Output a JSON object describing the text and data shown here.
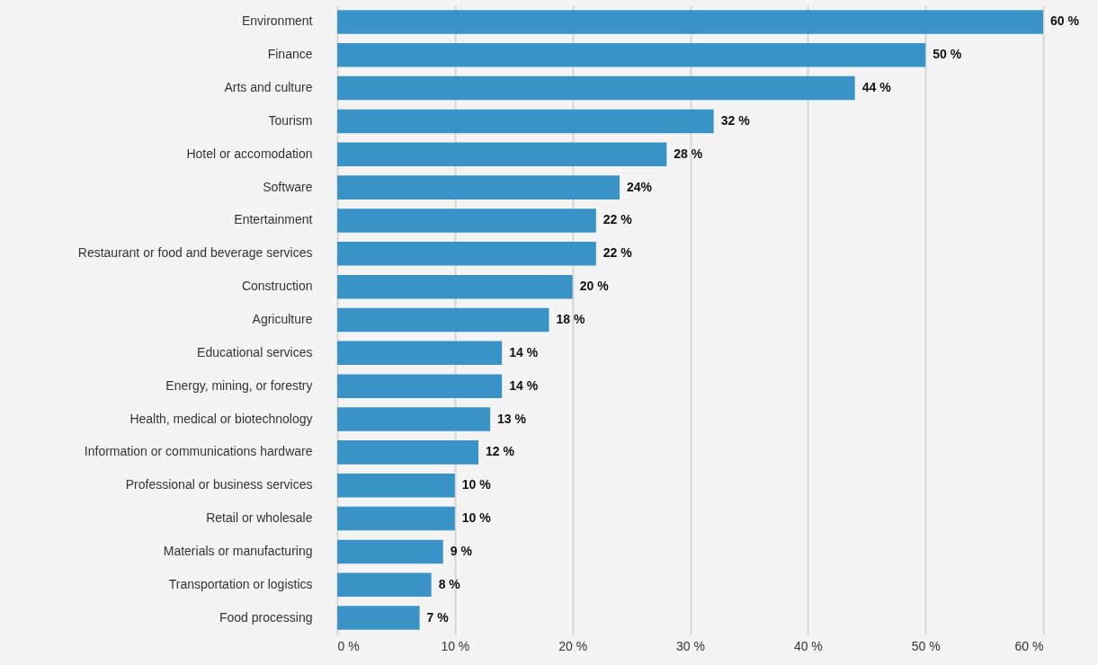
{
  "chart_data": {
    "type": "bar",
    "orientation": "horizontal",
    "categories": [
      "Environment",
      "Finance",
      "Arts and culture",
      "Tourism",
      "Hotel or accomodation",
      "Software",
      "Entertainment",
      "Restaurant or food and beverage services",
      "Construction",
      "Agriculture",
      "Educational services",
      "Energy, mining, or forestry",
      "Health, medical or biotechnology",
      "Information or communications hardware",
      "Professional or business services",
      "Retail or wholesale",
      "Materials or manufacturing",
      "Transportation or logistics",
      "Food processing"
    ],
    "values": [
      60,
      50,
      44,
      32,
      28,
      24,
      22,
      22,
      20,
      18,
      14,
      14,
      13,
      12,
      10,
      10,
      9,
      8,
      7
    ],
    "value_labels": [
      "60 %",
      "50 %",
      "44 %",
      "32 %",
      "28 %",
      "24%",
      "22 %",
      "22 %",
      "20 %",
      "18 %",
      "14 %",
      "14 %",
      "13 %",
      "12 %",
      "10 %",
      "10 %",
      "9 %",
      "8 %",
      "7 %"
    ],
    "color": "#3a93c6",
    "xlim": [
      0,
      60
    ],
    "xticks": [
      {
        "value": 0,
        "label": "0 %"
      },
      {
        "value": 10,
        "label": "10 %"
      },
      {
        "value": 20,
        "label": "20 %"
      },
      {
        "value": 30,
        "label": "30 %"
      },
      {
        "value": 40,
        "label": "40 %"
      },
      {
        "value": 50,
        "label": "50 %"
      },
      {
        "value": 60,
        "label": "60 %"
      }
    ],
    "grid": "x"
  }
}
